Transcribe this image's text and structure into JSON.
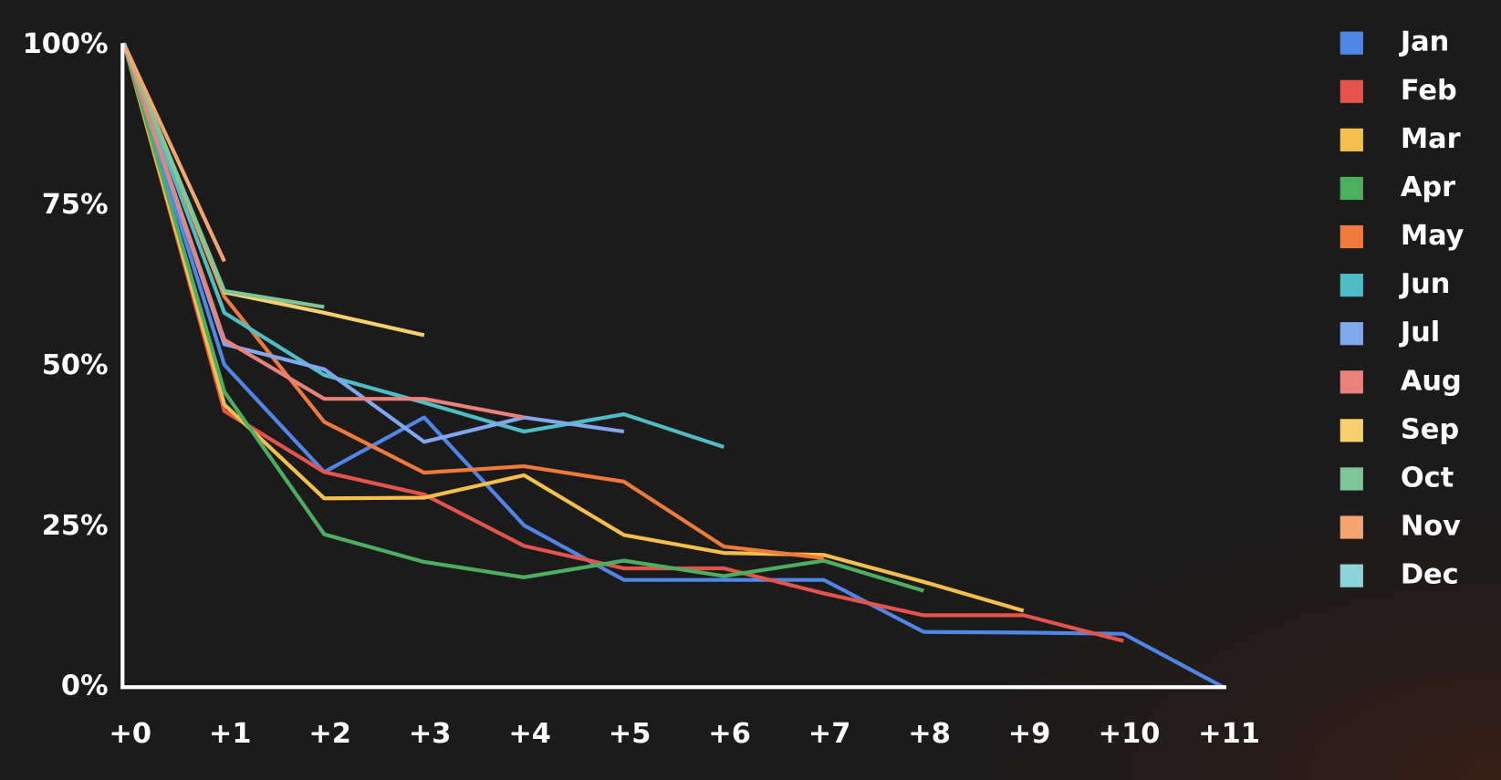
{
  "chart_data": {
    "type": "line",
    "categories": [
      "+0",
      "+1",
      "+2",
      "+3",
      "+4",
      "+5",
      "+6",
      "+7",
      "+8",
      "+9",
      "+10",
      "+11"
    ],
    "ylim": [
      0,
      100
    ],
    "yticks": [
      {
        "value": 0,
        "label": "0%"
      },
      {
        "value": 25,
        "label": "25%"
      },
      {
        "value": 50,
        "label": "50%"
      },
      {
        "value": 75,
        "label": "75%"
      },
      {
        "value": 100,
        "label": "100%"
      }
    ],
    "grid": false,
    "legend": "right",
    "series": [
      {
        "name": "Jan",
        "color": "#4f86e8",
        "values": [
          100,
          50.2,
          33.5,
          42,
          25.2,
          16.7,
          16.7,
          16.7,
          8.6,
          8.5,
          8.3,
          0
        ]
      },
      {
        "name": "Feb",
        "color": "#e5534b",
        "values": [
          100,
          43,
          33.5,
          30,
          22,
          18.5,
          18.5,
          14.6,
          11.2,
          11.2,
          7.2,
          null
        ]
      },
      {
        "name": "Mar",
        "color": "#f5c04a",
        "values": [
          100,
          44,
          29.4,
          29.5,
          33,
          23.7,
          20.9,
          20.6,
          16.4,
          11.9,
          null,
          null
        ]
      },
      {
        "name": "Apr",
        "color": "#4caf5f",
        "values": [
          100,
          46,
          23.8,
          19.5,
          17.1,
          19.7,
          17.3,
          19.7,
          15,
          null,
          null,
          null
        ]
      },
      {
        "name": "May",
        "color": "#f07a3a",
        "values": [
          100,
          60.8,
          41.3,
          33.4,
          34.4,
          32,
          21.9,
          20.1,
          null,
          null,
          null,
          null
        ]
      },
      {
        "name": "Jun",
        "color": "#4dbdc6",
        "values": [
          100,
          58.3,
          48.6,
          44.3,
          39.8,
          42.5,
          37.4,
          null,
          null,
          null,
          null,
          null
        ]
      },
      {
        "name": "Jul",
        "color": "#7fa8ef",
        "values": [
          100,
          53.4,
          49.5,
          38.2,
          42,
          39.8,
          null,
          null,
          null,
          null,
          null,
          null
        ]
      },
      {
        "name": "Aug",
        "color": "#e8827a",
        "values": [
          100,
          54.1,
          44.9,
          44.9,
          42,
          null,
          null,
          null,
          null,
          null,
          null,
          null
        ]
      },
      {
        "name": "Sep",
        "color": "#f9d06b",
        "values": [
          100,
          61.5,
          58.3,
          54.8,
          null,
          null,
          null,
          null,
          null,
          null,
          null,
          null
        ]
      },
      {
        "name": "Oct",
        "color": "#7cc795",
        "values": [
          100,
          61.7,
          59.2,
          null,
          null,
          null,
          null,
          null,
          null,
          null,
          null,
          null
        ]
      },
      {
        "name": "Nov",
        "color": "#f5a66e",
        "values": [
          100,
          66.3,
          null,
          null,
          null,
          null,
          null,
          null,
          null,
          null,
          null,
          null
        ]
      },
      {
        "name": "Dec",
        "color": "#8dd3d9",
        "values": [
          100,
          null,
          null,
          null,
          null,
          null,
          null,
          null,
          null,
          null,
          null,
          null
        ]
      }
    ]
  }
}
